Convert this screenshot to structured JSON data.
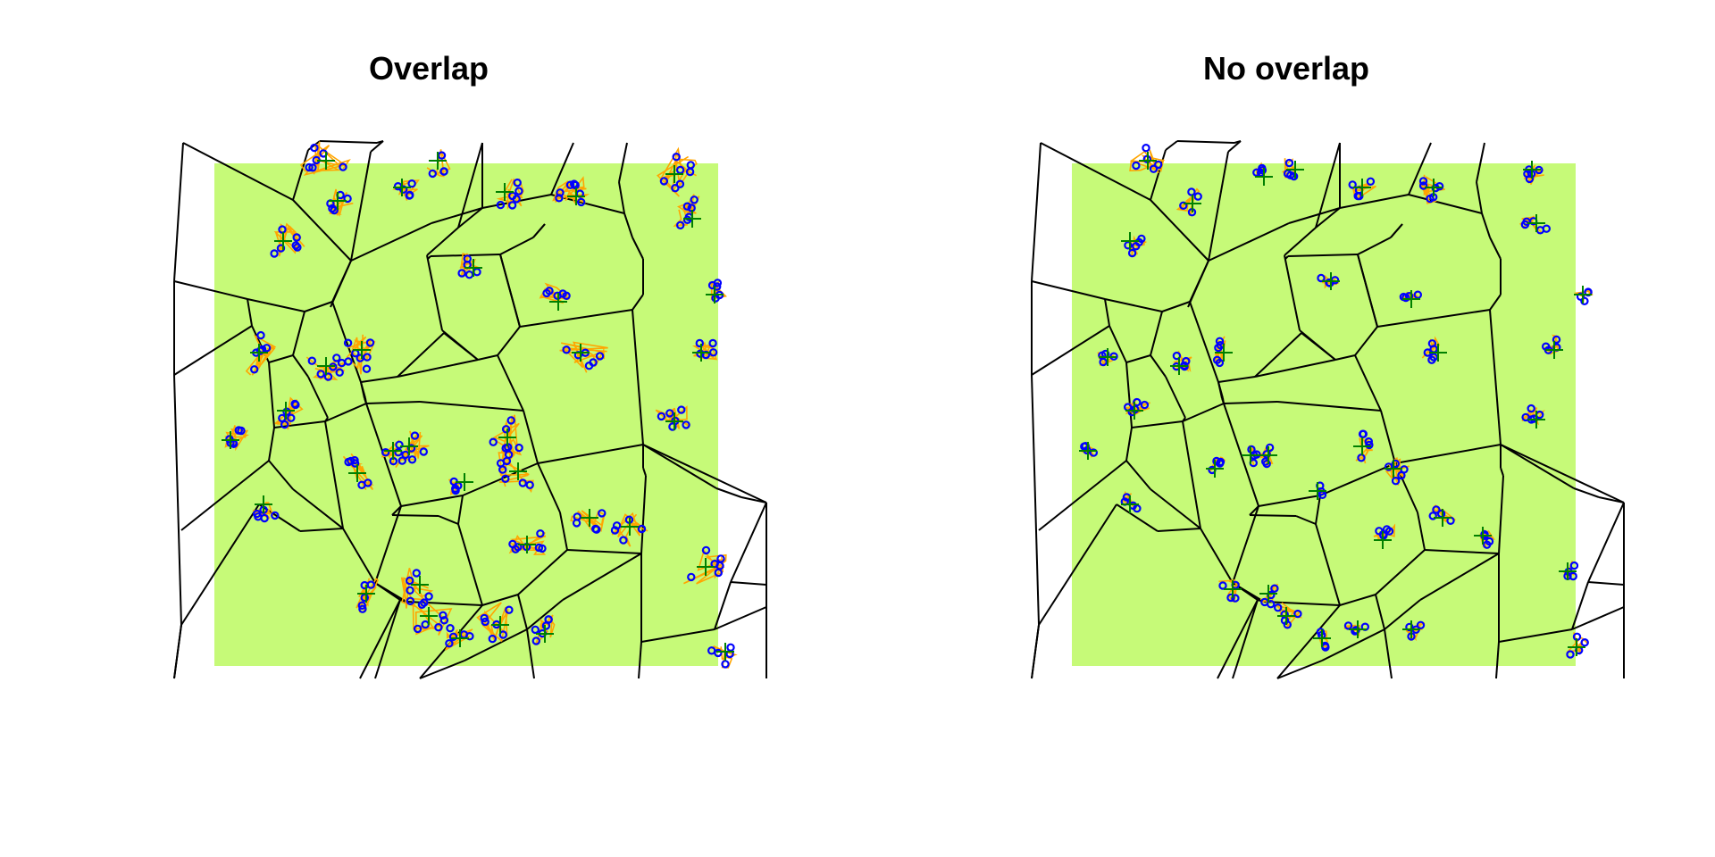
{
  "panels": [
    {
      "title": "Overlap",
      "mode": "overlap"
    },
    {
      "title": "No overlap",
      "mode": "no-overlap"
    }
  ],
  "colors": {
    "background": "#ffffff",
    "region": "#c6fa78",
    "cell_edges": "#000000",
    "tracks": "#ffa500",
    "points": "#0000ff",
    "centers": "#008000"
  },
  "legend": "none"
}
